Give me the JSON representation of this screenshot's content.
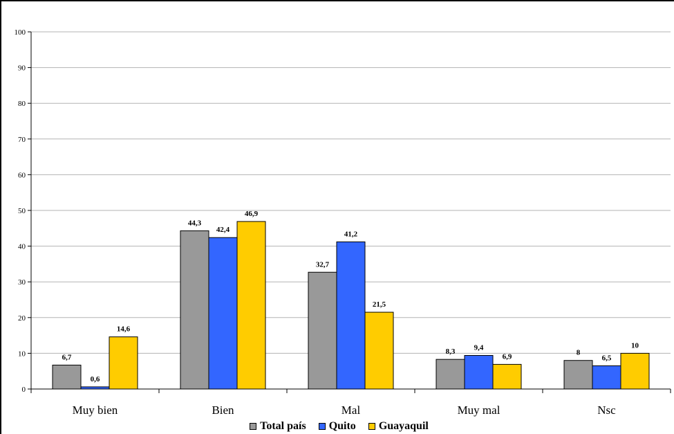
{
  "chart_data": {
    "type": "bar",
    "categories": [
      "Muy bien",
      "Bien",
      "Mal",
      "Muy mal",
      "Nsc"
    ],
    "series": [
      {
        "name": "Total país",
        "color": "#999999",
        "values": [
          6.7,
          44.3,
          32.7,
          8.3,
          8
        ],
        "labels": [
          "6,7",
          "44,3",
          "32,7",
          "8,3",
          "8"
        ]
      },
      {
        "name": "Quito",
        "color": "#3366ff",
        "values": [
          0.6,
          42.4,
          41.2,
          9.4,
          6.5
        ],
        "labels": [
          "0,6",
          "42,4",
          "41,2",
          "9,4",
          "6,5"
        ]
      },
      {
        "name": "Guayaquil",
        "color": "#ffcc00",
        "values": [
          14.6,
          46.9,
          21.5,
          6.9,
          10
        ],
        "labels": [
          "14,6",
          "46,9",
          "21,5",
          "6,9",
          "10"
        ]
      }
    ],
    "ylim": [
      0,
      100
    ],
    "yticks": [
      "0",
      "10",
      "20",
      "30",
      "40",
      "50",
      "60",
      "70",
      "80",
      "90",
      "100"
    ],
    "grid": true,
    "legend_position": "bottom",
    "title": "",
    "xlabel": "",
    "ylabel": ""
  }
}
